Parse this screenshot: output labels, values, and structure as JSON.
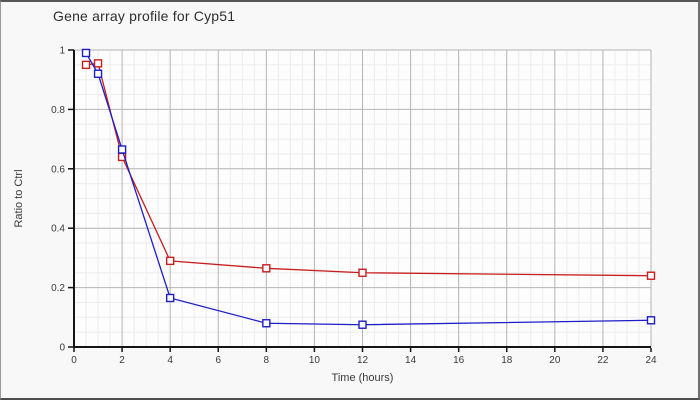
{
  "chart_data": {
    "type": "line",
    "title": "Gene array profile for Cyp51",
    "xlabel": "Time (hours)",
    "ylabel": "Ratio to Ctrl",
    "xlim": [
      0,
      24
    ],
    "ylim": [
      0,
      1
    ],
    "x": [
      0.5,
      1,
      2,
      4,
      8,
      12,
      24
    ],
    "series": [
      {
        "name": "red",
        "color": "#c81e1e",
        "marker": "open-square",
        "values": [
          0.95,
          0.955,
          0.64,
          0.29,
          0.265,
          0.25,
          0.24
        ]
      },
      {
        "name": "blue",
        "color": "#1e1ec8",
        "marker": "open-square",
        "values": [
          0.99,
          0.92,
          0.665,
          0.165,
          0.08,
          0.075,
          0.09
        ]
      }
    ],
    "x_ticks": [
      0,
      2,
      4,
      6,
      8,
      10,
      12,
      14,
      16,
      18,
      20,
      22,
      24
    ],
    "x_tick_labels": [
      "0",
      "2",
      "4",
      "6",
      "8",
      "10",
      "12",
      "14",
      "16",
      "18",
      "20",
      "22",
      "24"
    ],
    "y_ticks": [
      0,
      0.2,
      0.4,
      0.6,
      0.8,
      1
    ],
    "y_tick_labels": [
      "0",
      "0.2",
      "0.4",
      "0.6",
      "0.8",
      "1"
    ],
    "x_minor_step": 0.5,
    "y_minor_step": 0.05,
    "grid": {
      "visible": true,
      "major_color": "#b4b4b4",
      "minor_color": "#ececec"
    },
    "legend": "none",
    "axis_color": "#151515",
    "background": "#f8f8f8",
    "plot_background": "#fdfdfd"
  }
}
